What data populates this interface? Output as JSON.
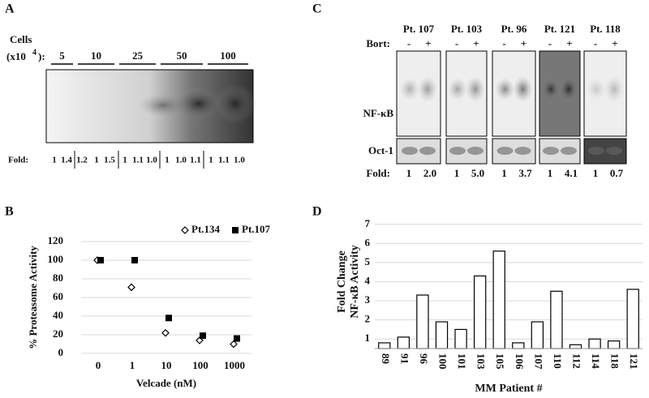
{
  "panel_labels": [
    "A",
    "B",
    "C",
    "D"
  ],
  "panel_a": {
    "cells_label": "Cells",
    "units_label": "(x10",
    "units_exponent": "4",
    "units_close": "):",
    "lanes": [
      "5",
      "10",
      "25",
      "50",
      "100"
    ],
    "fold_label": "Fold:",
    "folds": [
      "1",
      "1.4",
      "1.2",
      "1",
      "1.5",
      "1",
      "1.1",
      "1.0",
      "1",
      "1.0",
      "1.1",
      "1",
      "1.1",
      "1.0"
    ]
  },
  "panel_c": {
    "patients": [
      "Pt. 107",
      "Pt. 103",
      "Pt. 96",
      "Pt. 121",
      "Pt. 118"
    ],
    "treatment_label": "Bort:",
    "minus": "-",
    "plus": "+",
    "bands": [
      "NF-κB",
      "Oct-1"
    ],
    "fold_label": "Fold:",
    "folds": [
      [
        "1",
        "2.0"
      ],
      [
        "1",
        "5.0"
      ],
      [
        "1",
        "3.7"
      ],
      [
        "1",
        "4.1"
      ],
      [
        "1",
        "0.7"
      ]
    ]
  },
  "chart_data": [
    {
      "type": "scatter",
      "y_label": "% Proteasome Activity",
      "x_label": "Velcade (nM)",
      "categories": [
        "0",
        "1",
        "10",
        "100",
        "1000"
      ],
      "series": [
        {
          "name": "Pt.134",
          "marker": "open-diamond",
          "color": "#000000",
          "values": [
            100,
            71,
            22,
            14,
            10
          ]
        },
        {
          "name": "Pt.107",
          "marker": "filled-square",
          "color": "#000000",
          "values": [
            100,
            100,
            38,
            19,
            16
          ]
        }
      ],
      "ylim": [
        0,
        120
      ],
      "yticks": [
        0,
        20,
        40,
        60,
        80,
        100,
        120
      ],
      "grid": true,
      "legend": "top"
    },
    {
      "type": "bar",
      "y_label": [
        "Fold Change",
        "NF-κB Activity"
      ],
      "x_label": "MM Patient #",
      "categories": [
        "89",
        "91",
        "96",
        "100",
        "101",
        "103",
        "105",
        "106",
        "107",
        "110",
        "112",
        "114",
        "118",
        "121"
      ],
      "values": [
        0.8,
        1.1,
        3.3,
        1.9,
        1.5,
        4.3,
        5.6,
        0.8,
        1.9,
        3.5,
        0.7,
        1.0,
        0.9,
        3.6
      ],
      "color": "#ffffff",
      "edge_color": "#000000",
      "ylim": [
        0.5,
        7.5
      ],
      "yticks": [
        1,
        2,
        3,
        4,
        5,
        6,
        7
      ],
      "grid": true
    }
  ]
}
